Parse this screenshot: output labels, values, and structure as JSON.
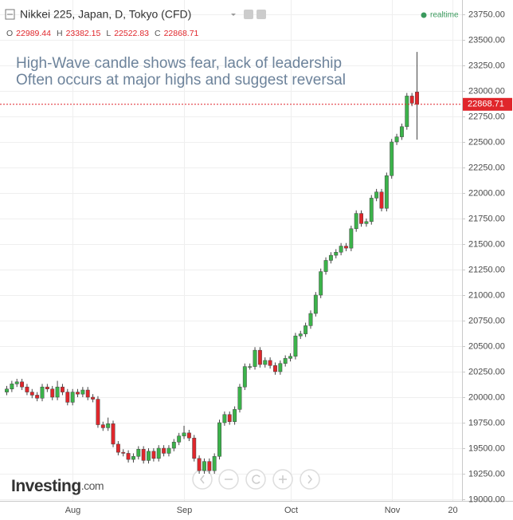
{
  "chart_data": {
    "type": "candlestick",
    "title": "Nikkei 225, Japan, D, Tokyo (CFD)",
    "status": "realtime",
    "ohlc_labels": [
      "O",
      "H",
      "L",
      "C"
    ],
    "annotation": [
      "High-Wave candle shows fear, lack of leadership",
      "Often occurs at major highs and suggest reversal"
    ],
    "brand": {
      "name": "Investing",
      "suffix": ".com"
    },
    "categories": [
      null,
      null,
      null,
      null,
      null,
      null,
      null,
      null,
      null,
      null,
      null,
      null,
      null,
      "Aug",
      null,
      null,
      null,
      null,
      null,
      null,
      null,
      null,
      null,
      null,
      null,
      null,
      null,
      null,
      null,
      null,
      null,
      null,
      null,
      null,
      null,
      "Sep",
      null,
      null,
      null,
      null,
      null,
      null,
      null,
      null,
      null,
      null,
      null,
      null,
      null,
      null,
      null,
      null,
      null,
      null,
      null,
      null,
      "Oct",
      null,
      null,
      null,
      null,
      null,
      null,
      null,
      null,
      null,
      null,
      null,
      null,
      null,
      null,
      null,
      null,
      null,
      null,
      null,
      "Nov",
      null,
      null,
      null,
      null,
      null,
      null,
      null,
      null,
      null,
      null,
      null,
      "20"
    ],
    "open": [
      20050,
      20080,
      20130,
      20150,
      20100,
      20050,
      20020,
      19990,
      20100,
      20080,
      20000,
      20100,
      20050,
      19950,
      20050,
      20030,
      20070,
      20000,
      19980,
      19730,
      19700,
      19740,
      19540,
      19460,
      19450,
      19390,
      19420,
      19490,
      19380,
      19470,
      19400,
      19500,
      19450,
      19500,
      19560,
      19620,
      19650,
      19600,
      19400,
      19280,
      19370,
      19280,
      19420,
      19750,
      19830,
      19760,
      19880,
      20100,
      20300,
      20300,
      20460,
      20320,
      20360,
      20310,
      20250,
      20330,
      20380,
      20400,
      20600,
      20620,
      20700,
      20820,
      21000,
      21230,
      21340,
      21390,
      21420,
      21480,
      21460,
      21650,
      21800,
      21700,
      21720,
      21950,
      22010,
      21850,
      22170,
      22500,
      22550,
      22650,
      22950,
      22989.44,
      null,
      null,
      null,
      null,
      null,
      null,
      null
    ],
    "high": [
      20110,
      20160,
      20180,
      20180,
      20130,
      20080,
      20050,
      20130,
      20130,
      20110,
      20160,
      20130,
      20080,
      20080,
      20080,
      20100,
      20100,
      20030,
      20010,
      19760,
      19800,
      19770,
      19570,
      19490,
      19480,
      19450,
      19520,
      19520,
      19500,
      19500,
      19530,
      19530,
      19530,
      19590,
      19650,
      19720,
      19680,
      19630,
      19430,
      19400,
      19400,
      19450,
      19780,
      19860,
      19860,
      19910,
      20130,
      20330,
      20330,
      20490,
      20490,
      20390,
      20390,
      20340,
      20360,
      20410,
      20430,
      20630,
      20650,
      20730,
      20850,
      21030,
      21260,
      21370,
      21420,
      21450,
      21510,
      21510,
      21680,
      21830,
      21830,
      21750,
      21980,
      22040,
      22040,
      22200,
      22530,
      22580,
      22680,
      22980,
      22980,
      23382.15,
      null,
      null,
      null,
      null,
      null,
      null,
      null
    ],
    "low": [
      20020,
      20050,
      20100,
      20070,
      20020,
      19990,
      19960,
      19960,
      20050,
      19970,
      19970,
      20020,
      19920,
      19920,
      20000,
      20000,
      19970,
      19950,
      19700,
      19670,
      19670,
      19510,
      19430,
      19420,
      19360,
      19360,
      19390,
      19350,
      19350,
      19370,
      19370,
      19420,
      19420,
      19470,
      19530,
      19590,
      19570,
      19370,
      19250,
      19250,
      19250,
      19250,
      19390,
      19720,
      19730,
      19730,
      19850,
      20070,
      20270,
      20270,
      20290,
      20290,
      20280,
      20220,
      20220,
      20300,
      20350,
      20370,
      20570,
      20590,
      20670,
      20790,
      20970,
      21200,
      21310,
      21360,
      21390,
      21430,
      21430,
      21620,
      21670,
      21670,
      21690,
      21920,
      21820,
      21820,
      22140,
      22470,
      22520,
      22620,
      22850,
      22522.83,
      null,
      null,
      null,
      null,
      null,
      null,
      null
    ],
    "close": [
      20080,
      20130,
      20150,
      20100,
      20050,
      20020,
      19990,
      20100,
      20080,
      20000,
      20100,
      20050,
      19950,
      20050,
      20030,
      20070,
      20000,
      19980,
      19730,
      19700,
      19740,
      19540,
      19460,
      19450,
      19390,
      19420,
      19490,
      19380,
      19470,
      19400,
      19500,
      19450,
      19500,
      19560,
      19620,
      19650,
      19600,
      19400,
      19280,
      19370,
      19280,
      19420,
      19750,
      19830,
      19760,
      19880,
      20100,
      20300,
      20300,
      20460,
      20320,
      20360,
      20310,
      20250,
      20330,
      20380,
      20400,
      20600,
      20620,
      20700,
      20820,
      21000,
      21230,
      21340,
      21390,
      21420,
      21480,
      21460,
      21650,
      21800,
      21700,
      21720,
      21950,
      22010,
      21850,
      22170,
      22500,
      22550,
      22650,
      22950,
      22880,
      22868.71,
      null,
      null,
      null,
      null,
      null,
      null,
      null
    ],
    "up_color": "#3bb34a",
    "down_color": "#e0262b",
    "ylim": [
      19000,
      23750
    ],
    "yticks": [
      {
        "value": 19000,
        "label": "19000.00"
      },
      {
        "value": 19250,
        "label": "19250.00"
      },
      {
        "value": 19500,
        "label": "19500.00"
      },
      {
        "value": 19750,
        "label": "19750.00"
      },
      {
        "value": 20000,
        "label": "20000.00"
      },
      {
        "value": 20250,
        "label": "20250.00"
      },
      {
        "value": 20500,
        "label": "20500.00"
      },
      {
        "value": 20750,
        "label": "20750.00"
      },
      {
        "value": 21000,
        "label": "21000.00"
      },
      {
        "value": 21250,
        "label": "21250.00"
      },
      {
        "value": 21500,
        "label": "21500.00"
      },
      {
        "value": 21750,
        "label": "21750.00"
      },
      {
        "value": 22000,
        "label": "22000.00"
      },
      {
        "value": 22250,
        "label": "22250.00"
      },
      {
        "value": 22500,
        "label": "22500.00"
      },
      {
        "value": 22750,
        "label": "22750.00"
      },
      {
        "value": 23000,
        "label": "23000.00"
      },
      {
        "value": 23250,
        "label": "23250.00"
      },
      {
        "value": 23500,
        "label": "23500.00"
      },
      {
        "value": 23750,
        "label": "23750.00"
      }
    ],
    "grid": true,
    "last_price_line": true
  }
}
